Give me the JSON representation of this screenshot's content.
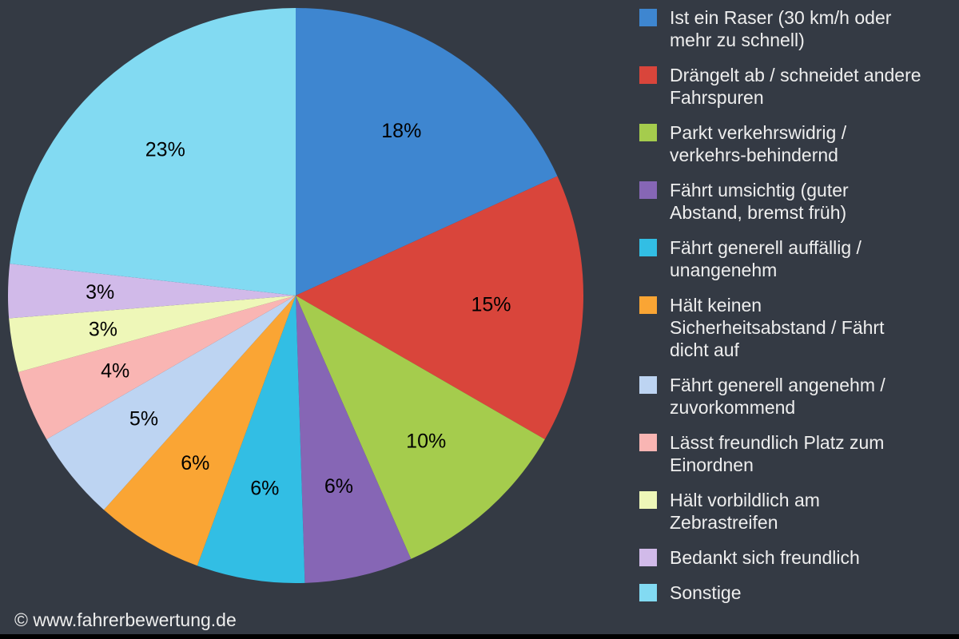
{
  "background_color": "#343a44",
  "text_color": "#eeeeee",
  "label_color": "#000000",
  "chart_data": {
    "type": "pie",
    "start_angle_deg": 0,
    "direction": "clockwise",
    "legend_position": "right",
    "value_labels": "percent-inside",
    "slices": [
      {
        "label": "Ist ein Raser (30 km/h oder\nmehr zu schnell)",
        "value": 18,
        "display": "18%",
        "color": "#3e86d0"
      },
      {
        "label": "Drängelt ab / schneidet andere\nFahrspuren",
        "value": 15,
        "display": "15%",
        "color": "#d9453b"
      },
      {
        "label": "Parkt verkehrswidrig /\nverkehrs-behindernd",
        "value": 10,
        "display": "10%",
        "color": "#a5cc4d"
      },
      {
        "label": "Fährt umsichtig (guter\nAbstand, bremst früh)",
        "value": 6,
        "display": "6%",
        "color": "#8666b5"
      },
      {
        "label": "Fährt generell auffällig /\nunangenehm",
        "value": 6,
        "display": "6%",
        "color": "#32bee4"
      },
      {
        "label": "Hält keinen\nSicherheitsabstand / Fährt\ndicht auf",
        "value": 6,
        "display": "6%",
        "color": "#faa534"
      },
      {
        "label": "Fährt generell angenehm /\nzuvorkommend",
        "value": 5,
        "display": "5%",
        "color": "#bdd4f2"
      },
      {
        "label": "Lässt freundlich Platz zum\nEinordnen",
        "value": 4,
        "display": "4%",
        "color": "#f9b5b3"
      },
      {
        "label": "Hält vorbildlich am\nZebrastreifen",
        "value": 3,
        "display": "3%",
        "color": "#eef7b8"
      },
      {
        "label": "Bedankt sich freundlich",
        "value": 3,
        "display": "3%",
        "color": "#d1bae9"
      },
      {
        "label": "Sonstige",
        "value": 23,
        "display": "23%",
        "color": "#82daf2"
      }
    ]
  },
  "footer": {
    "copyright": "© www.fahrerbewertung.de"
  }
}
